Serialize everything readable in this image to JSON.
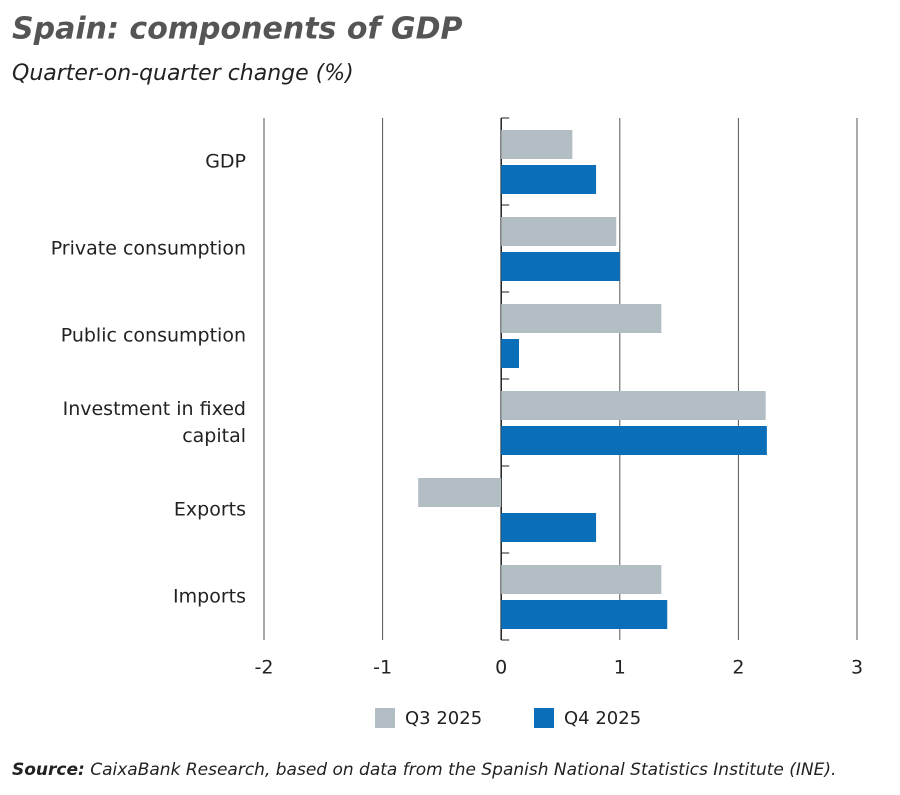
{
  "chart_data": {
    "type": "hbar",
    "title": "Spain: components of GDP",
    "subtitle": "Quarter-on-quarter change (%)",
    "categories": [
      "GDP",
      "Private consumption",
      "Public consumption",
      "Investment in fixed capital",
      "Exports",
      "Imports"
    ],
    "series": [
      {
        "name": "Q3 2025",
        "color": "#b2bec3",
        "values": [
          0.6,
          0.97,
          1.35,
          2.23,
          -0.7,
          1.35
        ]
      },
      {
        "name": "Q4 2025",
        "color": "#0a6fb8",
        "values": [
          0.8,
          1.0,
          0.15,
          2.24,
          0.8,
          1.4
        ]
      }
    ],
    "xlim": [
      -2,
      3
    ],
    "xticks": [
      -2,
      -1,
      0,
      1,
      2,
      3
    ],
    "grid": true,
    "source_label": "Source:",
    "source": "CaixaBank Research, based on data from the Spanish National Statistics Institute (INE)."
  }
}
